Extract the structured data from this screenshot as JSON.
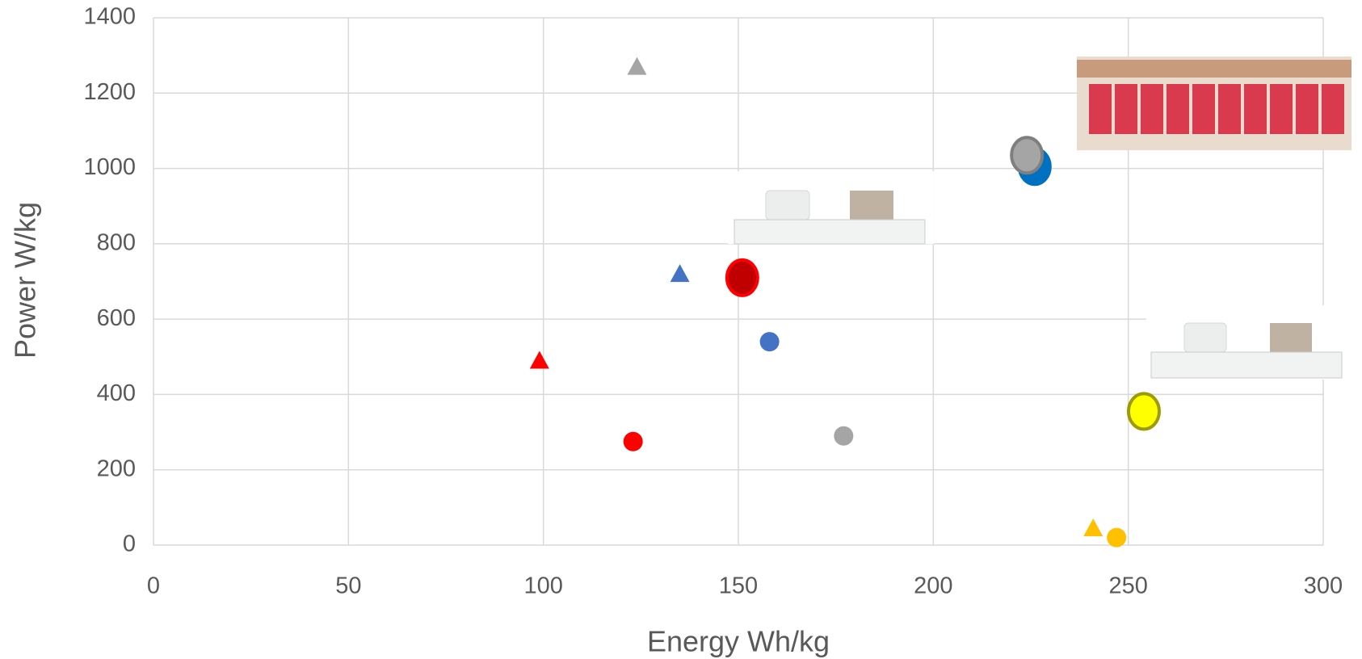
{
  "chart_data": {
    "type": "scatter",
    "x_label": "Energy Wh/kg",
    "y_label": "Power W/kg",
    "xlim": [
      0,
      300
    ],
    "xticks": [
      0,
      50,
      100,
      150,
      200,
      250,
      300
    ],
    "ylim": [
      0,
      1400
    ],
    "yticks": [
      0,
      200,
      400,
      600,
      800,
      1000,
      1200,
      1400
    ],
    "grid": true,
    "series": [
      {
        "marker": "triangle",
        "color": "#a5a5a5",
        "x": [
          124
        ],
        "values": [
          1270
        ]
      },
      {
        "marker": "triangle",
        "color": "#4472c4",
        "x": [
          135
        ],
        "values": [
          720
        ]
      },
      {
        "marker": "triangle",
        "color": "#ff0000",
        "x": [
          99
        ],
        "values": [
          490
        ]
      },
      {
        "marker": "triangle",
        "color": "#ffc000",
        "x": [
          241
        ],
        "values": [
          45
        ]
      },
      {
        "marker": "circle",
        "color": "#ff0000",
        "x": [
          123
        ],
        "values": [
          275
        ]
      },
      {
        "marker": "circle",
        "color": "#4472c4",
        "x": [
          158
        ],
        "values": [
          540
        ]
      },
      {
        "marker": "circle",
        "color": "#a5a5a5",
        "x": [
          177
        ],
        "values": [
          290
        ]
      },
      {
        "marker": "circle",
        "color": "#ffc000",
        "x": [
          247
        ],
        "values": [
          20
        ]
      },
      {
        "marker": "ellipse",
        "color": "#c00000",
        "stroke": "#ff0000",
        "x": [
          151
        ],
        "values": [
          710
        ]
      },
      {
        "marker": "ellipse",
        "color": "#0070c0",
        "stroke": "#0070c0",
        "x": [
          226
        ],
        "values": [
          1005
        ]
      },
      {
        "marker": "ellipse",
        "color": "#a5a5a5",
        "stroke": "#7f7f7f",
        "x": [
          224
        ],
        "values": [
          1035
        ]
      },
      {
        "marker": "ellipse",
        "color": "#ffff00",
        "stroke": "#9c9c00",
        "x": [
          254
        ],
        "values": [
          355
        ]
      }
    ]
  }
}
